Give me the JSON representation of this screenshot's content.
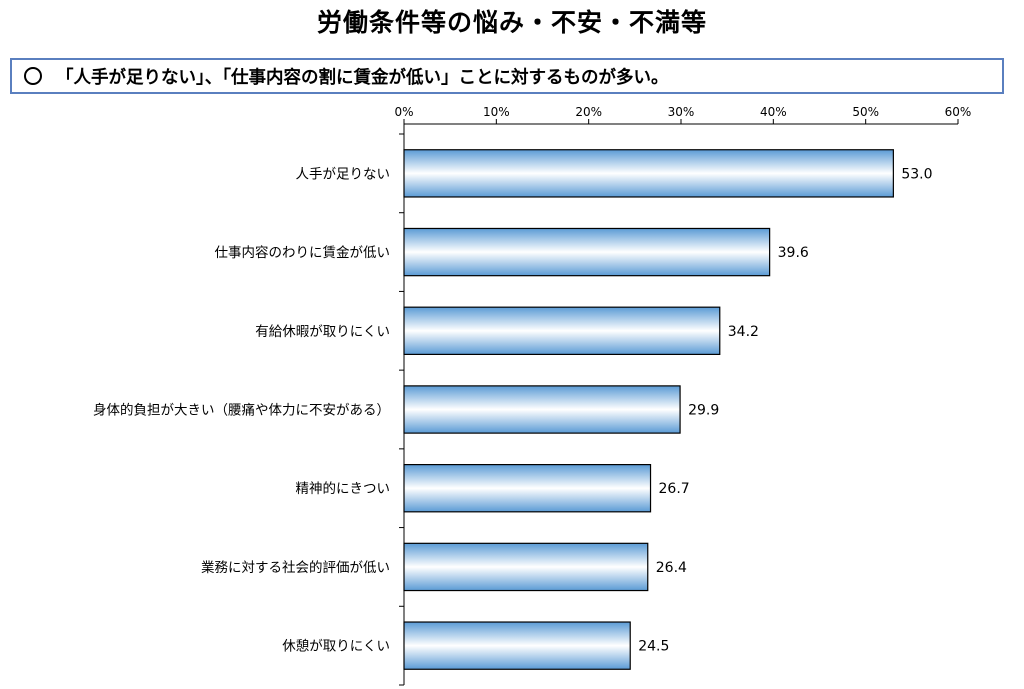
{
  "title": "労働条件等の悩み・不安・不満等",
  "summary": {
    "text": "「人手が足りない」、「仕事内容の割に賃金が低い」ことに対するものが多い。"
  },
  "colors": {
    "box_border": "#5a7fbf",
    "bar_edge": "#5b9bd5",
    "bar_center": "#ffffff",
    "bar_stroke": "#000000"
  },
  "chart_data": {
    "type": "bar",
    "orientation": "horizontal",
    "categories": [
      "人手が足りない",
      "仕事内容のわりに賃金が低い",
      "有給休暇が取りにくい",
      "身体的負担が大きい（腰痛や体力に不安がある）",
      "精神的にきつい",
      "業務に対する社会的評価が低い",
      "休憩が取りにくい"
    ],
    "values": [
      53.0,
      39.6,
      34.2,
      29.9,
      26.7,
      26.4,
      24.5
    ],
    "value_labels": [
      "53.0",
      "39.6",
      "34.2",
      "29.9",
      "26.7",
      "26.4",
      "24.5"
    ],
    "xlim": [
      0,
      60
    ],
    "x_ticks": [
      0,
      10,
      20,
      30,
      40,
      50,
      60
    ],
    "x_tick_labels": [
      "0%",
      "10%",
      "20%",
      "30%",
      "40%",
      "50%",
      "60%"
    ],
    "x_axis_position": "top",
    "grid": false,
    "legend": "none"
  }
}
